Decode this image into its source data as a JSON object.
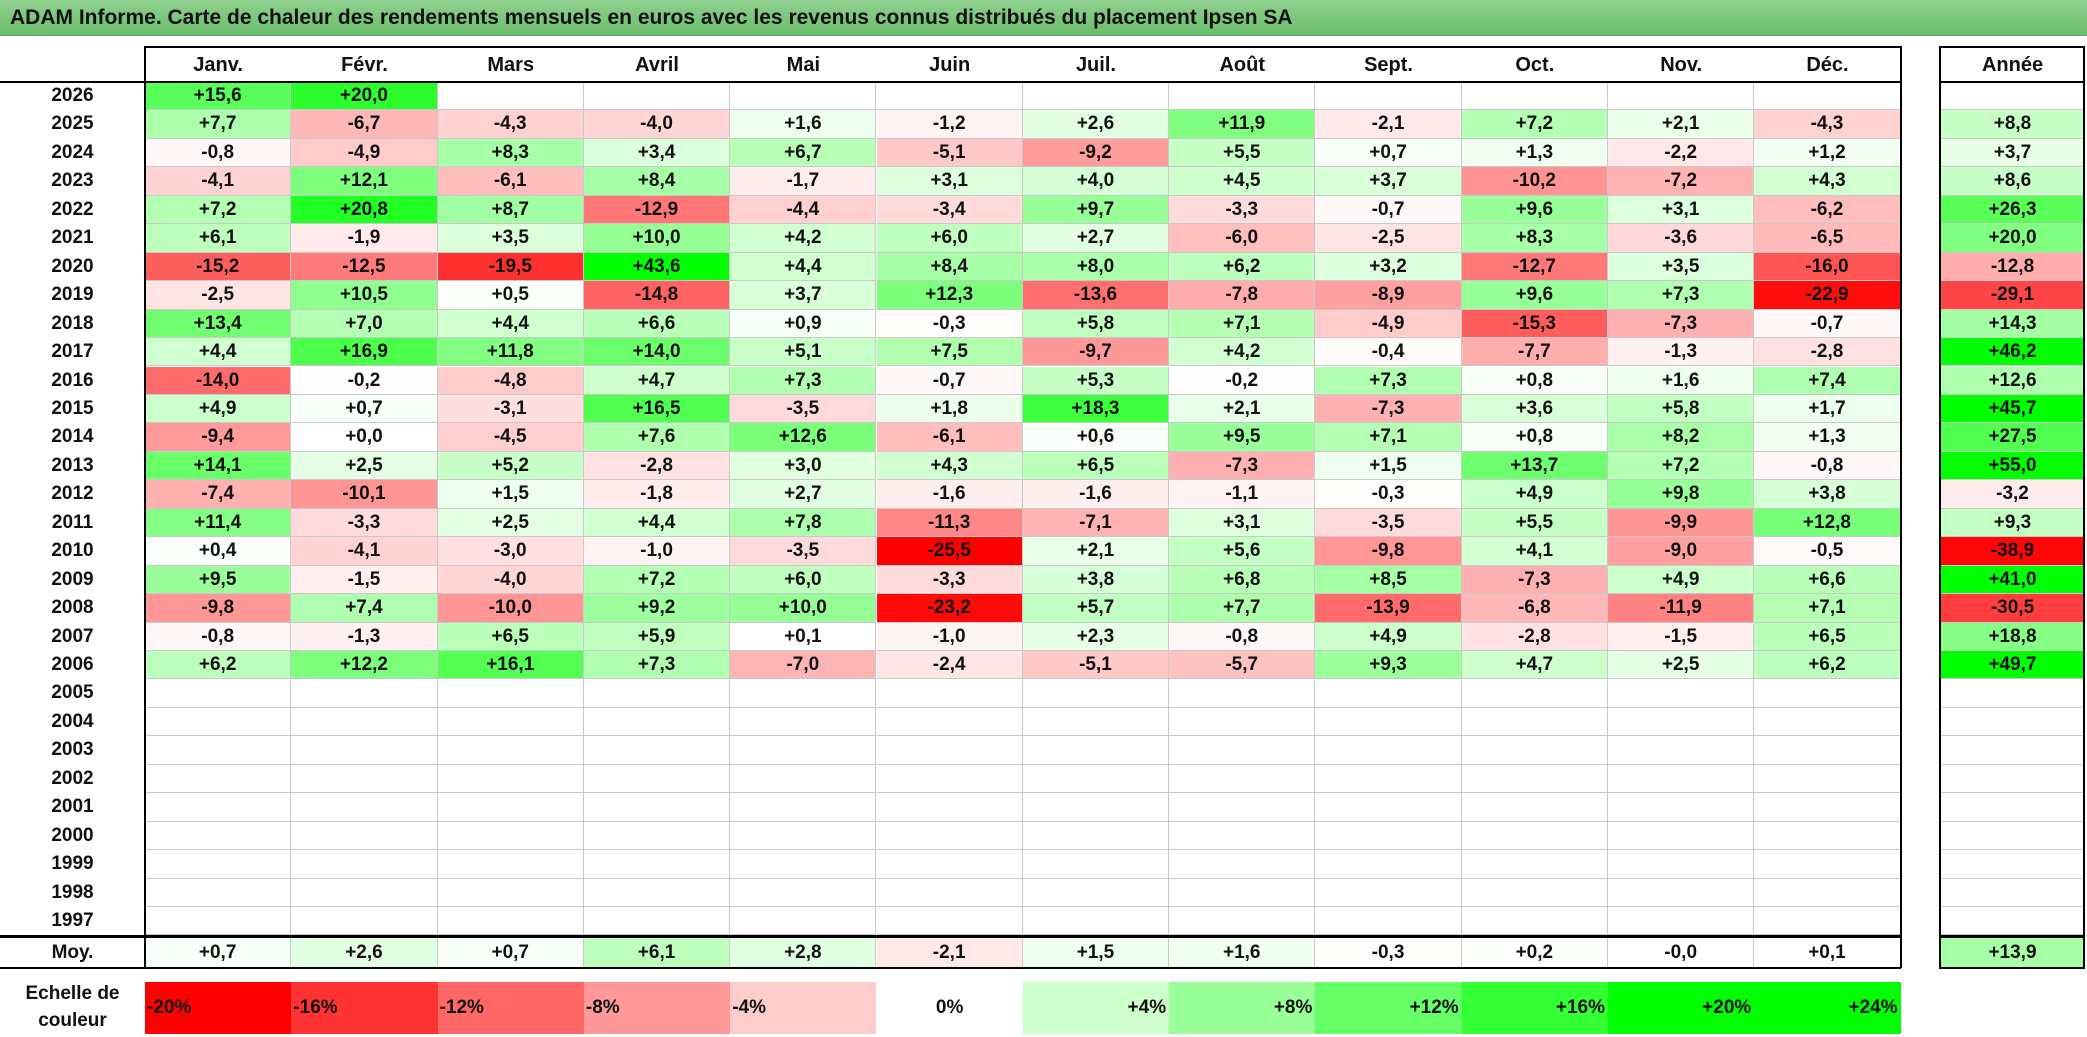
{
  "title": "ADAM Informe. Carte de chaleur des rendements mensuels en euros avec les revenus connus distribués du placement Ipsen SA",
  "chart_data": {
    "type": "heatmap",
    "title": "ADAM Informe. Carte de chaleur des rendements mensuels en euros avec les revenus connus distribués du placement Ipsen SA",
    "months": [
      "Janv.",
      "Févr.",
      "Mars",
      "Avril",
      "Mai",
      "Juin",
      "Juil.",
      "Août",
      "Sept.",
      "Oct.",
      "Nov.",
      "Déc."
    ],
    "year_header": "Année",
    "rows": [
      {
        "year": "2026",
        "months": [
          "+15,6",
          "+20,0",
          "",
          "",
          "",
          "",
          "",
          "",
          "",
          "",
          "",
          ""
        ],
        "annual": ""
      },
      {
        "year": "2025",
        "months": [
          "+7,7",
          "-6,7",
          "-4,3",
          "-4,0",
          "+1,6",
          "-1,2",
          "+2,6",
          "+11,9",
          "-2,1",
          "+7,2",
          "+2,1",
          "-4,3"
        ],
        "annual": "+8,8"
      },
      {
        "year": "2024",
        "months": [
          "-0,8",
          "-4,9",
          "+8,3",
          "+3,4",
          "+6,7",
          "-5,1",
          "-9,2",
          "+5,5",
          "+0,7",
          "+1,3",
          "-2,2",
          "+1,2"
        ],
        "annual": "+3,7"
      },
      {
        "year": "2023",
        "months": [
          "-4,1",
          "+12,1",
          "-6,1",
          "+8,4",
          "-1,7",
          "+3,1",
          "+4,0",
          "+4,5",
          "+3,7",
          "-10,2",
          "-7,2",
          "+4,3"
        ],
        "annual": "+8,6"
      },
      {
        "year": "2022",
        "months": [
          "+7,2",
          "+20,8",
          "+8,7",
          "-12,9",
          "-4,4",
          "-3,4",
          "+9,7",
          "-3,3",
          "-0,7",
          "+9,6",
          "+3,1",
          "-6,2"
        ],
        "annual": "+26,3"
      },
      {
        "year": "2021",
        "months": [
          "+6,1",
          "-1,9",
          "+3,5",
          "+10,0",
          "+4,2",
          "+6,0",
          "+2,7",
          "-6,0",
          "-2,5",
          "+8,3",
          "-3,6",
          "-6,5"
        ],
        "annual": "+20,0"
      },
      {
        "year": "2020",
        "months": [
          "-15,2",
          "-12,5",
          "-19,5",
          "+43,6",
          "+4,4",
          "+8,4",
          "+8,0",
          "+6,2",
          "+3,2",
          "-12,7",
          "+3,5",
          "-16,0"
        ],
        "annual": "-12,8"
      },
      {
        "year": "2019",
        "months": [
          "-2,5",
          "+10,5",
          "+0,5",
          "-14,8",
          "+3,7",
          "+12,3",
          "-13,6",
          "-7,8",
          "-8,9",
          "+9,6",
          "+7,3",
          "-22,9"
        ],
        "annual": "-29,1"
      },
      {
        "year": "2018",
        "months": [
          "+13,4",
          "+7,0",
          "+4,4",
          "+6,6",
          "+0,9",
          "-0,3",
          "+5,8",
          "+7,1",
          "-4,9",
          "-15,3",
          "-7,3",
          "-0,7"
        ],
        "annual": "+14,3"
      },
      {
        "year": "2017",
        "months": [
          "+4,4",
          "+16,9",
          "+11,8",
          "+14,0",
          "+5,1",
          "+7,5",
          "-9,7",
          "+4,2",
          "-0,4",
          "-7,7",
          "-1,3",
          "-2,8"
        ],
        "annual": "+46,2"
      },
      {
        "year": "2016",
        "months": [
          "-14,0",
          "-0,2",
          "-4,8",
          "+4,7",
          "+7,3",
          "-0,7",
          "+5,3",
          "-0,2",
          "+7,3",
          "+0,8",
          "+1,6",
          "+7,4"
        ],
        "annual": "+12,6"
      },
      {
        "year": "2015",
        "months": [
          "+4,9",
          "+0,7",
          "-3,1",
          "+16,5",
          "-3,5",
          "+1,8",
          "+18,3",
          "+2,1",
          "-7,3",
          "+3,6",
          "+5,8",
          "+1,7"
        ],
        "annual": "+45,7"
      },
      {
        "year": "2014",
        "months": [
          "-9,4",
          "+0,0",
          "-4,5",
          "+7,6",
          "+12,6",
          "-6,1",
          "+0,6",
          "+9,5",
          "+7,1",
          "+0,8",
          "+8,2",
          "+1,3"
        ],
        "annual": "+27,5"
      },
      {
        "year": "2013",
        "months": [
          "+14,1",
          "+2,5",
          "+5,2",
          "-2,8",
          "+3,0",
          "+4,3",
          "+6,5",
          "-7,3",
          "+1,5",
          "+13,7",
          "+7,2",
          "-0,8"
        ],
        "annual": "+55,0"
      },
      {
        "year": "2012",
        "months": [
          "-7,4",
          "-10,1",
          "+1,5",
          "-1,8",
          "+2,7",
          "-1,6",
          "-1,6",
          "-1,1",
          "-0,3",
          "+4,9",
          "+9,8",
          "+3,8"
        ],
        "annual": "-3,2"
      },
      {
        "year": "2011",
        "months": [
          "+11,4",
          "-3,3",
          "+2,5",
          "+4,4",
          "+7,8",
          "-11,3",
          "-7,1",
          "+3,1",
          "-3,5",
          "+5,5",
          "-9,9",
          "+12,8"
        ],
        "annual": "+9,3"
      },
      {
        "year": "2010",
        "months": [
          "+0,4",
          "-4,1",
          "-3,0",
          "-1,0",
          "-3,5",
          "-25,5",
          "+2,1",
          "+5,6",
          "-9,8",
          "+4,1",
          "-9,0",
          "-0,5"
        ],
        "annual": "-38,9"
      },
      {
        "year": "2009",
        "months": [
          "+9,5",
          "-1,5",
          "-4,0",
          "+7,2",
          "+6,0",
          "-3,3",
          "+3,8",
          "+6,8",
          "+8,5",
          "-7,3",
          "+4,9",
          "+6,6"
        ],
        "annual": "+41,0"
      },
      {
        "year": "2008",
        "months": [
          "-9,8",
          "+7,4",
          "-10,0",
          "+9,2",
          "+10,0",
          "-23,2",
          "+5,7",
          "+7,7",
          "-13,9",
          "-6,8",
          "-11,9",
          "+7,1"
        ],
        "annual": "-30,5"
      },
      {
        "year": "2007",
        "months": [
          "-0,8",
          "-1,3",
          "+6,5",
          "+5,9",
          "+0,1",
          "-1,0",
          "+2,3",
          "-0,8",
          "+4,9",
          "-2,8",
          "-1,5",
          "+6,5"
        ],
        "annual": "+18,8"
      },
      {
        "year": "2006",
        "months": [
          "+6,2",
          "+12,2",
          "+16,1",
          "+7,3",
          "-7,0",
          "-2,4",
          "-5,1",
          "-5,7",
          "+9,3",
          "+4,7",
          "+2,5",
          "+6,2"
        ],
        "annual": "+49,7"
      },
      {
        "year": "2005",
        "months": [
          "",
          "",
          "",
          "",
          "",
          "",
          "",
          "",
          "",
          "",
          "",
          ""
        ],
        "annual": ""
      },
      {
        "year": "2004",
        "months": [
          "",
          "",
          "",
          "",
          "",
          "",
          "",
          "",
          "",
          "",
          "",
          ""
        ],
        "annual": ""
      },
      {
        "year": "2003",
        "months": [
          "",
          "",
          "",
          "",
          "",
          "",
          "",
          "",
          "",
          "",
          "",
          ""
        ],
        "annual": ""
      },
      {
        "year": "2002",
        "months": [
          "",
          "",
          "",
          "",
          "",
          "",
          "",
          "",
          "",
          "",
          "",
          ""
        ],
        "annual": ""
      },
      {
        "year": "2001",
        "months": [
          "",
          "",
          "",
          "",
          "",
          "",
          "",
          "",
          "",
          "",
          "",
          ""
        ],
        "annual": ""
      },
      {
        "year": "2000",
        "months": [
          "",
          "",
          "",
          "",
          "",
          "",
          "",
          "",
          "",
          "",
          "",
          ""
        ],
        "annual": ""
      },
      {
        "year": "1999",
        "months": [
          "",
          "",
          "",
          "",
          "",
          "",
          "",
          "",
          "",
          "",
          "",
          ""
        ],
        "annual": ""
      },
      {
        "year": "1998",
        "months": [
          "",
          "",
          "",
          "",
          "",
          "",
          "",
          "",
          "",
          "",
          "",
          ""
        ],
        "annual": ""
      },
      {
        "year": "1997",
        "months": [
          "",
          "",
          "",
          "",
          "",
          "",
          "",
          "",
          "",
          "",
          "",
          ""
        ],
        "annual": ""
      }
    ],
    "average": {
      "label": "Moy.",
      "months": [
        "+0,7",
        "+2,6",
        "+0,7",
        "+6,1",
        "+2,8",
        "-2,1",
        "+1,5",
        "+1,6",
        "-0,3",
        "+0,2",
        "-0,0",
        "+0,1"
      ],
      "annual": "+13,9"
    },
    "color_scale": {
      "label": "Echelle de couleur",
      "steps": [
        "-20%",
        "-16%",
        "-12%",
        "-8%",
        "-4%",
        "0%",
        "+4%",
        "+8%",
        "+12%",
        "+16%",
        "+20%",
        "+24%"
      ],
      "negative_color": "#ff0000",
      "neutral_color": "#ffffff",
      "positive_color": "#00ff00"
    }
  }
}
